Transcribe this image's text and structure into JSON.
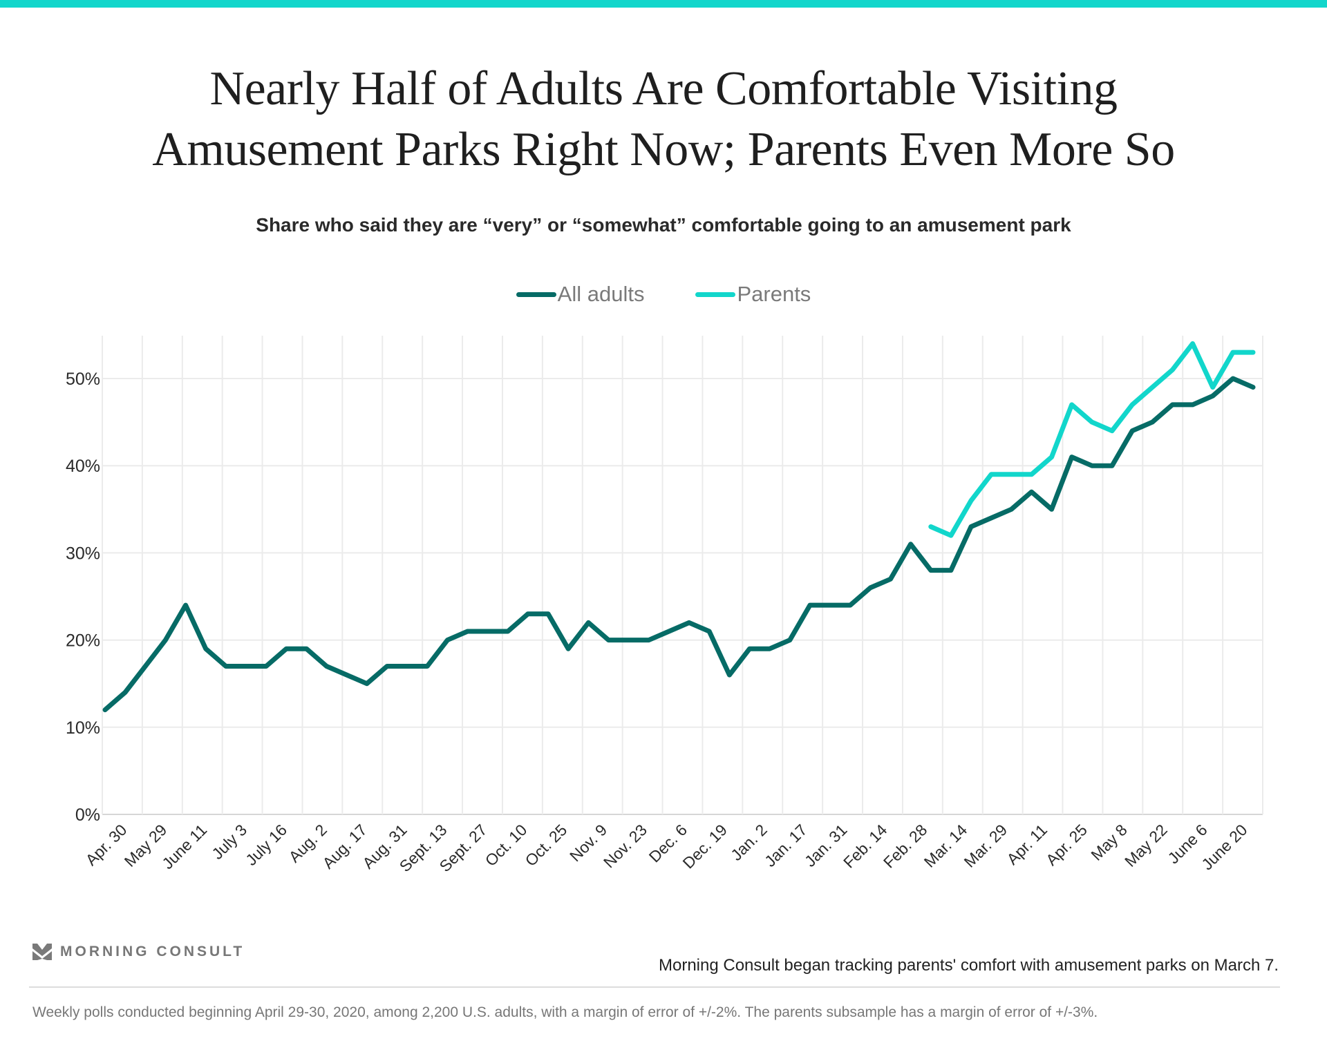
{
  "header": {
    "title_line1": "Nearly Half of Adults Are Comfortable Visiting",
    "title_line2": "Amusement Parks Right Now; Parents Even More So",
    "subtitle": "Share who said they are “very” or “somewhat” comfortable going to an amusement park"
  },
  "legend": {
    "items": [
      {
        "label": "All adults",
        "color": "#066b66"
      },
      {
        "label": "Parents",
        "color": "#12d6cb"
      }
    ]
  },
  "footer": {
    "logo_text": "MORNING CONSULT",
    "logo_icon": "chevron-m-logo-icon",
    "note": "Morning Consult began tracking parents' comfort with amusement parks on March 7.",
    "methodology": "Weekly polls conducted beginning April 29-30, 2020, among 2,200 U.S. adults, with a margin of error of +/-2%. The parents subsample has a margin of error of +/-3%."
  },
  "colors": {
    "accent_bar": "#12d6cb",
    "all_adults": "#066b66",
    "parents": "#12d6cb",
    "grid": "#ebebeb"
  },
  "chart_data": {
    "type": "line",
    "title": "Nearly Half of Adults Are Comfortable Visiting Amusement Parks Right Now; Parents Even More So",
    "subtitle": "Share who said they are “very” or “somewhat” comfortable going to an amusement park",
    "xlabel": "",
    "ylabel": "",
    "ylim": [
      0,
      54
    ],
    "yticks": [
      0,
      10,
      20,
      30,
      40,
      50
    ],
    "ytick_labels": [
      "0%",
      "10%",
      "20%",
      "30%",
      "40%",
      "50%"
    ],
    "xtick_labels": [
      "Apr. 30",
      "May 29",
      "June 11",
      "July 3",
      "July 16",
      "Aug. 2",
      "Aug. 17",
      "Aug. 31",
      "Sept. 13",
      "Sept. 27",
      "Oct. 10",
      "Oct. 25",
      "Nov. 9",
      "Nov. 23",
      "Dec. 6",
      "Dec. 19",
      "Jan. 2",
      "Jan. 17",
      "Jan. 31",
      "Feb. 14",
      "Feb. 28",
      "Mar. 14",
      "Mar. 29",
      "Apr. 11",
      "Apr. 25",
      "May 8",
      "May 22",
      "June 6",
      "June 20"
    ],
    "grid": true,
    "legend_position": "top-center",
    "n_points": 58,
    "series": [
      {
        "name": "All adults",
        "start_index": 0,
        "values": [
          12,
          14,
          17,
          20,
          24,
          19,
          17,
          17,
          17,
          19,
          19,
          17,
          16,
          15,
          17,
          17,
          17,
          20,
          21,
          21,
          21,
          23,
          23,
          19,
          22,
          20,
          20,
          20,
          21,
          22,
          21,
          16,
          19,
          19,
          20,
          24,
          24,
          24,
          26,
          27,
          31,
          28,
          28,
          33,
          34,
          35,
          37,
          35,
          41,
          40,
          40,
          44,
          45,
          47,
          47,
          48,
          50,
          49
        ]
      },
      {
        "name": "Parents",
        "start_index": 41,
        "values": [
          33,
          32,
          36,
          39,
          39,
          39,
          41,
          47,
          45,
          44,
          47,
          49,
          51,
          54,
          49,
          53,
          53
        ]
      }
    ]
  }
}
